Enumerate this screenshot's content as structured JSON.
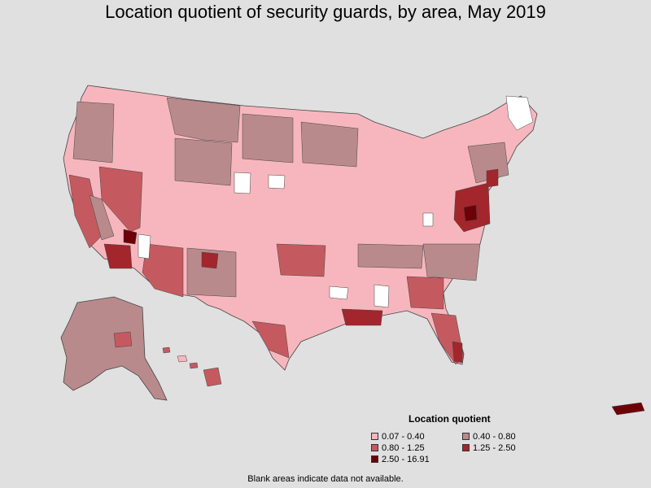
{
  "title": "Location quotient of security guards, by area, May 2019",
  "legend": {
    "title": "Location quotient",
    "items": [
      {
        "label": "0.07 - 0.40",
        "color": "#f7b6bd"
      },
      {
        "label": "0.40 - 0.80",
        "color": "#b98a8c"
      },
      {
        "label": "0.80 - 1.25",
        "color": "#c45a5f"
      },
      {
        "label": "1.25 - 2.50",
        "color": "#a2262c"
      },
      {
        "label": "2.50 - 16.91",
        "color": "#6e0008"
      }
    ]
  },
  "footnote": "Blank areas indicate data not available.",
  "colors": {
    "background": "#e0e0e0",
    "no_data": "#ffffff",
    "border": "#444444"
  }
}
